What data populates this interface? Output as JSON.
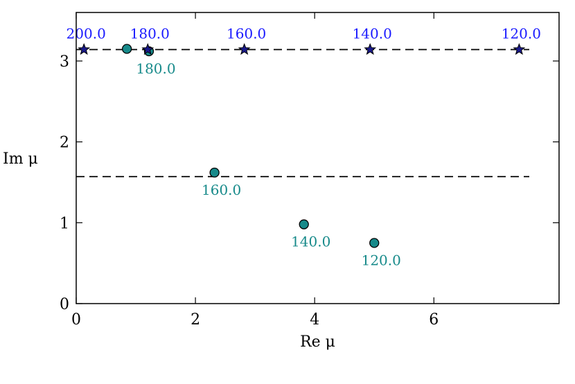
{
  "chart_data": {
    "type": "scatter",
    "xlabel": "Re μ",
    "ylabel": "Im μ",
    "xlim": [
      0,
      8.1
    ],
    "ylim": [
      0,
      3.6
    ],
    "xticks": [
      0,
      2,
      4,
      6
    ],
    "yticks": [
      0,
      1,
      2,
      3
    ],
    "grid": false,
    "reference_lines": [
      {
        "y": 3.1416,
        "x_range": [
          0,
          7.6
        ],
        "style": "dashed"
      },
      {
        "y": 1.5708,
        "x_range": [
          0,
          7.6
        ],
        "style": "dashed"
      }
    ],
    "series": [
      {
        "marker": "star",
        "color": "#1a1a8c",
        "label_color": "#1a1aff",
        "points": [
          {
            "x": 0.13,
            "y": 3.1416,
            "label": "200.0"
          },
          {
            "x": 1.2,
            "y": 3.1416,
            "label": "180.0"
          },
          {
            "x": 2.82,
            "y": 3.1416,
            "label": "160.0"
          },
          {
            "x": 4.93,
            "y": 3.1416,
            "label": "140.0"
          },
          {
            "x": 7.43,
            "y": 3.1416,
            "label": "120.0"
          }
        ]
      },
      {
        "marker": "circle",
        "color": "#178a8a",
        "label_color": "#178a8a",
        "points": [
          {
            "x": 0.85,
            "y": 3.15,
            "label": ""
          },
          {
            "x": 1.22,
            "y": 3.12,
            "label": "180.0"
          },
          {
            "x": 2.32,
            "y": 1.62,
            "label": "160.0"
          },
          {
            "x": 3.82,
            "y": 0.98,
            "label": "140.0"
          },
          {
            "x": 5.0,
            "y": 0.75,
            "label": "120.0"
          }
        ]
      }
    ]
  }
}
